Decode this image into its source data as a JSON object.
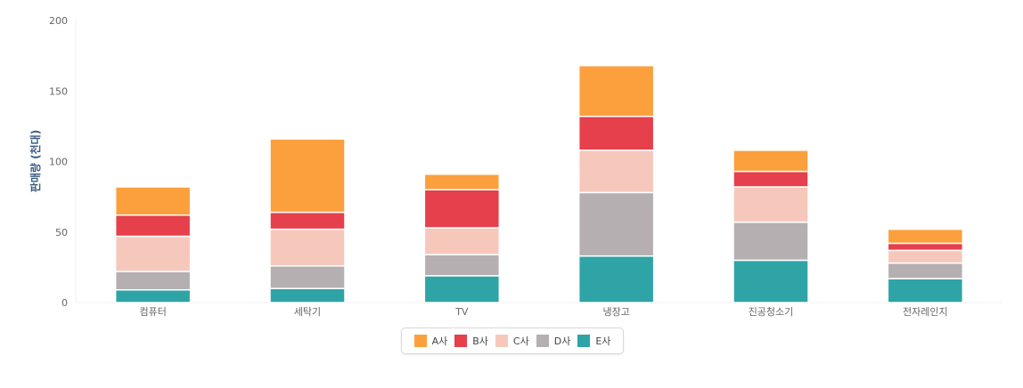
{
  "chart_data": {
    "type": "bar",
    "stacked": true,
    "categories": [
      "컴퓨터",
      "세탁기",
      "TV",
      "냉장고",
      "진공청소기",
      "전자레인지"
    ],
    "series": [
      {
        "name": "E사",
        "color": "#2fa4a7",
        "values": [
          9,
          10,
          19,
          33,
          30,
          17
        ]
      },
      {
        "name": "D사",
        "color": "#b6afb2",
        "values": [
          13,
          16,
          15,
          45,
          27,
          11
        ]
      },
      {
        "name": "C사",
        "color": "#f6c8bb",
        "values": [
          25,
          26,
          19,
          30,
          25,
          9
        ]
      },
      {
        "name": "B사",
        "color": "#e5404b",
        "values": [
          15,
          12,
          27,
          24,
          11,
          5
        ]
      },
      {
        "name": "A사",
        "color": "#fba03d",
        "values": [
          20,
          52,
          11,
          36,
          15,
          10
        ]
      }
    ],
    "ylabel": "판매량 (천대)",
    "xlabel": "",
    "ylim": [
      0,
      200
    ],
    "yticks": [
      0,
      50,
      100,
      150,
      200
    ],
    "legend_order": [
      "A사",
      "B사",
      "C사",
      "D사",
      "E사"
    ],
    "legend_position": "bottom-center"
  }
}
